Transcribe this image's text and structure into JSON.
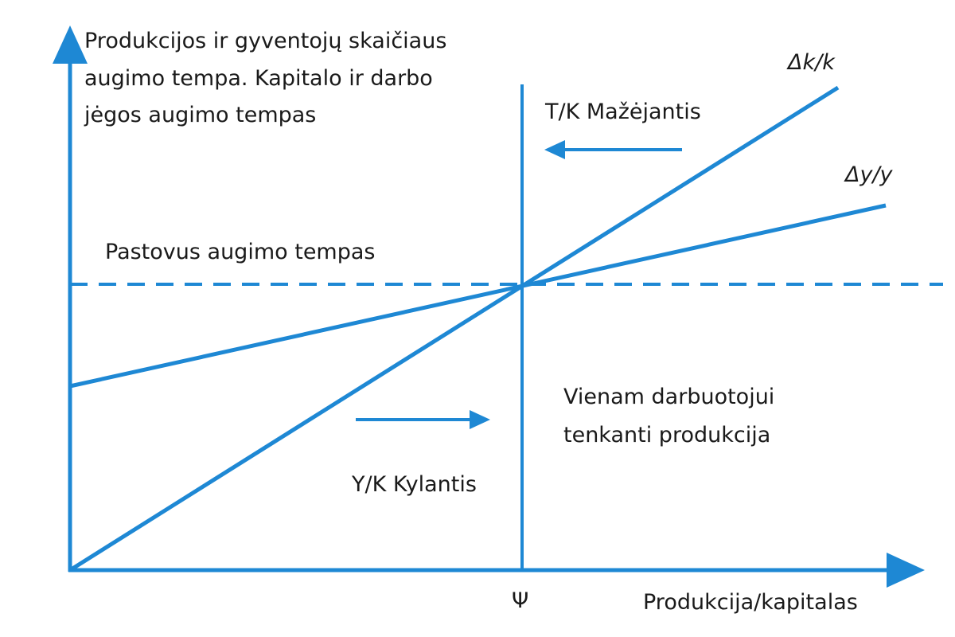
{
  "diagram": {
    "y_axis_label_lines": [
      "Produkcijos ir gyventojų skaičiaus",
      "augimo tempa. Kapitalo ir darbo",
      "jėgos augimo tempas"
    ],
    "x_axis_label": "Produkcija/kapitalas",
    "equilibrium_tick_label": "Ψ",
    "steady_growth_label": "Pastovus augimo tempas",
    "curve_k_label": "Δk/k",
    "curve_y_label": "Δy/y",
    "right_region_label": "T/K Mažėjantis",
    "left_region_label": "Y/K Kylantis",
    "output_per_worker_lines": [
      "Vienam darbuotojui",
      "tenkanti produkcija"
    ],
    "colors": {
      "line": "#1e88d4",
      "text": "#1a1a1a",
      "background": "#ffffff"
    }
  }
}
